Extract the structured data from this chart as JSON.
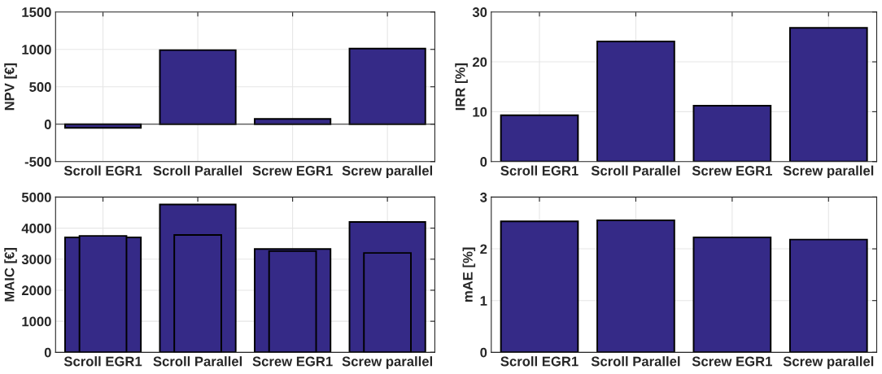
{
  "chart_data": [
    {
      "type": "bar",
      "ylabel": "NPV [€]",
      "categories": [
        "Scroll EGR1",
        "Scroll Parallel",
        "Screw EGR1",
        "Screw parallel"
      ],
      "values": [
        -50,
        990,
        70,
        1010
      ],
      "color": "#352a87",
      "ylim": [
        -500,
        1500
      ],
      "yticks": [
        -500,
        0,
        500,
        1000,
        1500
      ],
      "grid": true
    },
    {
      "type": "bar",
      "ylabel": "IRR [%]",
      "categories": [
        "Scroll EGR1",
        "Scroll Parallel",
        "Screw EGR1",
        "Screw parallel"
      ],
      "values": [
        9.3,
        24.1,
        11.2,
        26.8
      ],
      "color": "#352a87",
      "ylim": [
        0,
        30
      ],
      "yticks": [
        0,
        10,
        20,
        30
      ],
      "grid": true
    },
    {
      "type": "bar",
      "ylabel": "MAIC [€]",
      "categories": [
        "Scroll EGR1",
        "Scroll Parallel",
        "Screw EGR1",
        "Screw parallel"
      ],
      "series": [
        {
          "color": "#352a87",
          "values": [
            3700,
            4760,
            3330,
            4200
          ]
        },
        {
          "color": "#352a87",
          "values": [
            3750,
            3780,
            3260,
            3200
          ]
        }
      ],
      "ylim": [
        0,
        5000
      ],
      "yticks": [
        0,
        1000,
        2000,
        3000,
        4000,
        5000
      ],
      "grid": true
    },
    {
      "type": "bar",
      "ylabel": "mAE [%]",
      "categories": [
        "Scroll EGR1",
        "Scroll Parallel",
        "Screw EGR1",
        "Screw parallel"
      ],
      "values": [
        2.53,
        2.55,
        2.22,
        2.18
      ],
      "color": "#352a87",
      "ylim": [
        0,
        3
      ],
      "yticks": [
        0,
        1,
        2,
        3
      ],
      "grid": true
    }
  ]
}
